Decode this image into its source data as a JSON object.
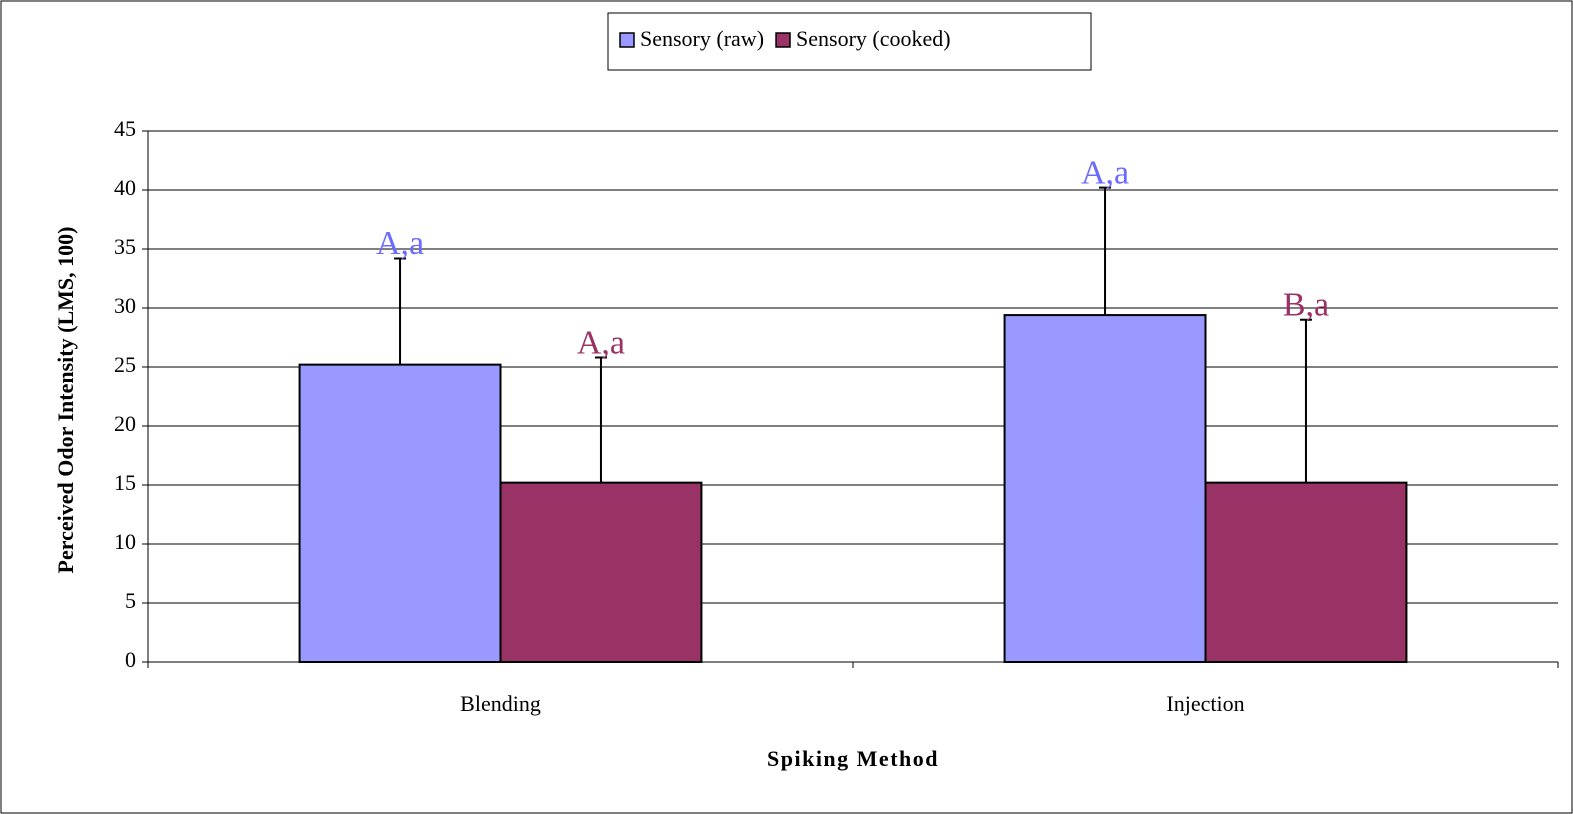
{
  "chart_data": {
    "type": "bar",
    "x_label": "Spiking Method",
    "y_label": "Perceived Odor Intensity (LMS, 100)",
    "categories": [
      "Blending",
      "Injection"
    ],
    "series": [
      {
        "name": "Sensory (raw)",
        "color": "#9999ff",
        "label_color": "#6b6bff",
        "values": [
          25.2,
          29.4
        ],
        "errors": [
          9.0,
          10.8
        ],
        "labels": [
          "A,a",
          "A,a"
        ]
      },
      {
        "name": "Sensory (cooked)",
        "color": "#993366",
        "label_color": "#993366",
        "values": [
          15.2,
          15.2
        ],
        "errors": [
          10.6,
          13.8
        ],
        "labels": [
          "A,a",
          "B,a"
        ]
      }
    ],
    "ylim": [
      0,
      45
    ],
    "yticks": [
      0,
      5,
      10,
      15,
      20,
      25,
      30,
      35,
      40,
      45
    ],
    "grid": true,
    "legend": "top"
  }
}
